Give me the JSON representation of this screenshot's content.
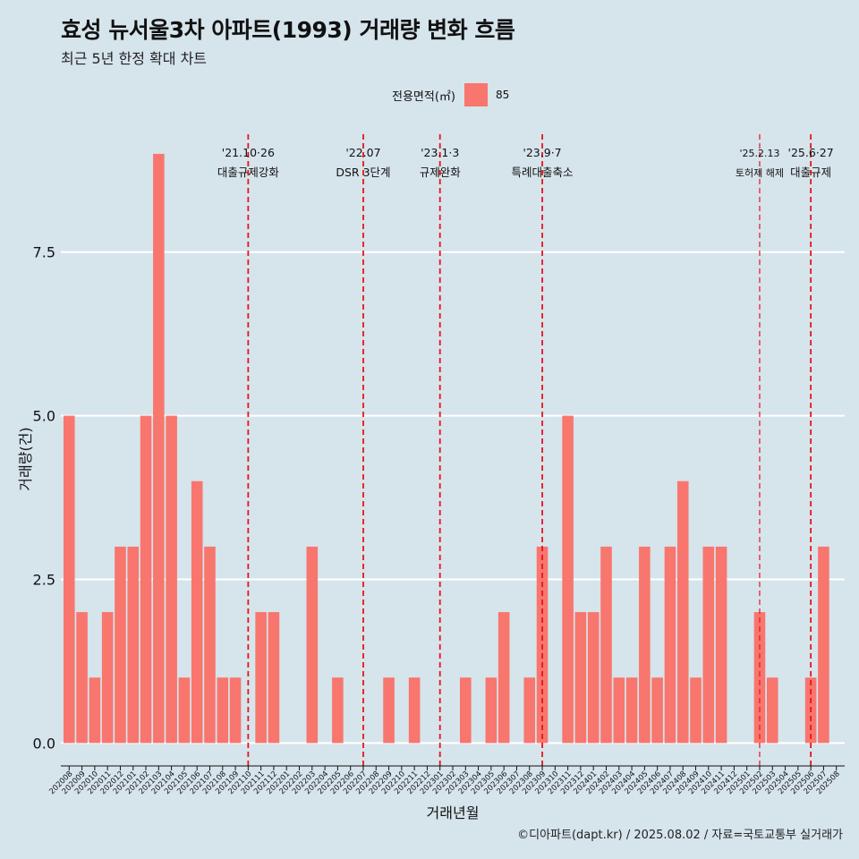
{
  "title": "효성 뉴서울3차 아파트(1993) 거래량 변화 흐름",
  "subtitle": "최근 5년 한정 확대 차트",
  "legend": {
    "title": "전용면적(㎡)",
    "items": [
      {
        "label": "85",
        "color": "#f8766d"
      }
    ]
  },
  "caption": "©디아파트(dapt.kr) / 2025.08.02 / 자료=국토교통부 실거래가",
  "chart_data": {
    "type": "bar",
    "title": "효성 뉴서울3차 아파트(1993) 거래량 변화 흐름",
    "xlabel": "거래년월",
    "ylabel": "거래량(건)",
    "ylim": [
      -0.35,
      9.3
    ],
    "yticks": [
      "0.0",
      "2.5",
      "5.0",
      "7.5"
    ],
    "grid": true,
    "legend_position": "top",
    "bar_color": "#f8766d",
    "categories": [
      "202008",
      "202009",
      "202010",
      "202011",
      "202012",
      "202101",
      "202102",
      "202103",
      "202104",
      "202105",
      "202106",
      "202107",
      "202108",
      "202109",
      "202110",
      "202111",
      "202112",
      "202201",
      "202202",
      "202203",
      "202204",
      "202205",
      "202206",
      "202207",
      "202208",
      "202209",
      "202210",
      "202211",
      "202212",
      "202301",
      "202302",
      "202303",
      "202304",
      "202305",
      "202306",
      "202307",
      "202308",
      "202309",
      "202310",
      "202311",
      "202312",
      "202401",
      "202402",
      "202403",
      "202404",
      "202405",
      "202406",
      "202407",
      "202408",
      "202409",
      "202410",
      "202411",
      "202412",
      "202501",
      "202502",
      "202503",
      "202504",
      "202505",
      "202506",
      "202507",
      "202508"
    ],
    "series": [
      {
        "name": "85",
        "values": [
          5,
          2,
          1,
          2,
          3,
          3,
          5,
          9,
          5,
          1,
          4,
          3,
          1,
          1,
          0,
          2,
          2,
          0,
          0,
          3,
          0,
          1,
          0,
          0,
          0,
          1,
          0,
          1,
          0,
          0,
          0,
          1,
          0,
          1,
          2,
          0,
          1,
          3,
          0,
          5,
          2,
          2,
          3,
          1,
          1,
          3,
          1,
          3,
          4,
          1,
          3,
          3,
          0,
          0,
          2,
          1,
          0,
          0,
          1,
          3,
          0
        ]
      }
    ],
    "annotations": [
      {
        "x": 14.5,
        "date": "'21.10·26",
        "label": "대출규제강화",
        "small": false
      },
      {
        "x": 23.5,
        "date": "'22.07",
        "label": "DSR 3단계",
        "small": false
      },
      {
        "x": 29.5,
        "date": "'23.1·3",
        "label": "규제완화",
        "small": false
      },
      {
        "x": 37.5,
        "date": "'23.9·7",
        "label": "특례대출축소",
        "small": false
      },
      {
        "x": 54.5,
        "date": "'25.2.13",
        "label": "토허제 해제",
        "small": true
      },
      {
        "x": 58.5,
        "date": "'25.6·27",
        "label": "대출규제",
        "small": false
      }
    ]
  }
}
